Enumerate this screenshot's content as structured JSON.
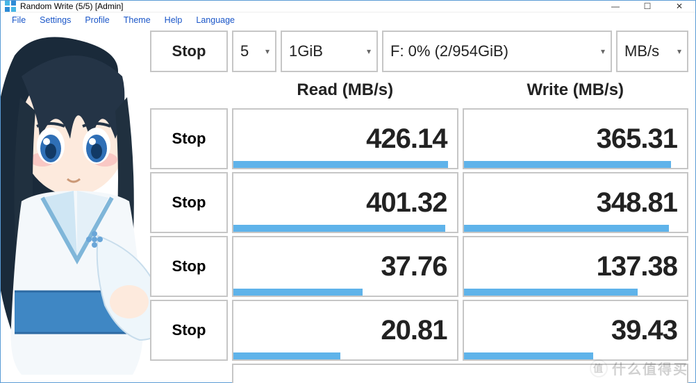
{
  "window": {
    "title": "Random Write (5/5) [Admin]",
    "icon_color1": "#46b6e6",
    "icon_color2": "#2e8bd6"
  },
  "menu": [
    "File",
    "Settings",
    "Profile",
    "Theme",
    "Help",
    "Language"
  ],
  "controls": {
    "main_button": "Stop",
    "count": "5",
    "size": "1GiB",
    "drive": "F: 0% (2/954GiB)",
    "unit": "MB/s"
  },
  "headers": {
    "read": "Read (MB/s)",
    "write": "Write (MB/s)"
  },
  "rows": [
    {
      "button": "Stop",
      "read": "426.14",
      "read_pct": 96,
      "write": "365.31",
      "write_pct": 93
    },
    {
      "button": "Stop",
      "read": "401.32",
      "read_pct": 95,
      "write": "348.81",
      "write_pct": 92
    },
    {
      "button": "Stop",
      "read": "37.76",
      "read_pct": 58,
      "write": "137.38",
      "write_pct": 78
    },
    {
      "button": "Stop",
      "read": "20.81",
      "read_pct": 48,
      "write": "39.43",
      "write_pct": 58
    }
  ],
  "colors": {
    "border": "#c6c6c6",
    "bar": "#5fb3ea",
    "menu_text": "#1a56c8",
    "window_border": "#5a9bd5"
  },
  "watermark": {
    "badge": "值",
    "text": "什么值得买"
  },
  "winbuttons": {
    "min": "—",
    "max": "☐",
    "close": "✕"
  }
}
